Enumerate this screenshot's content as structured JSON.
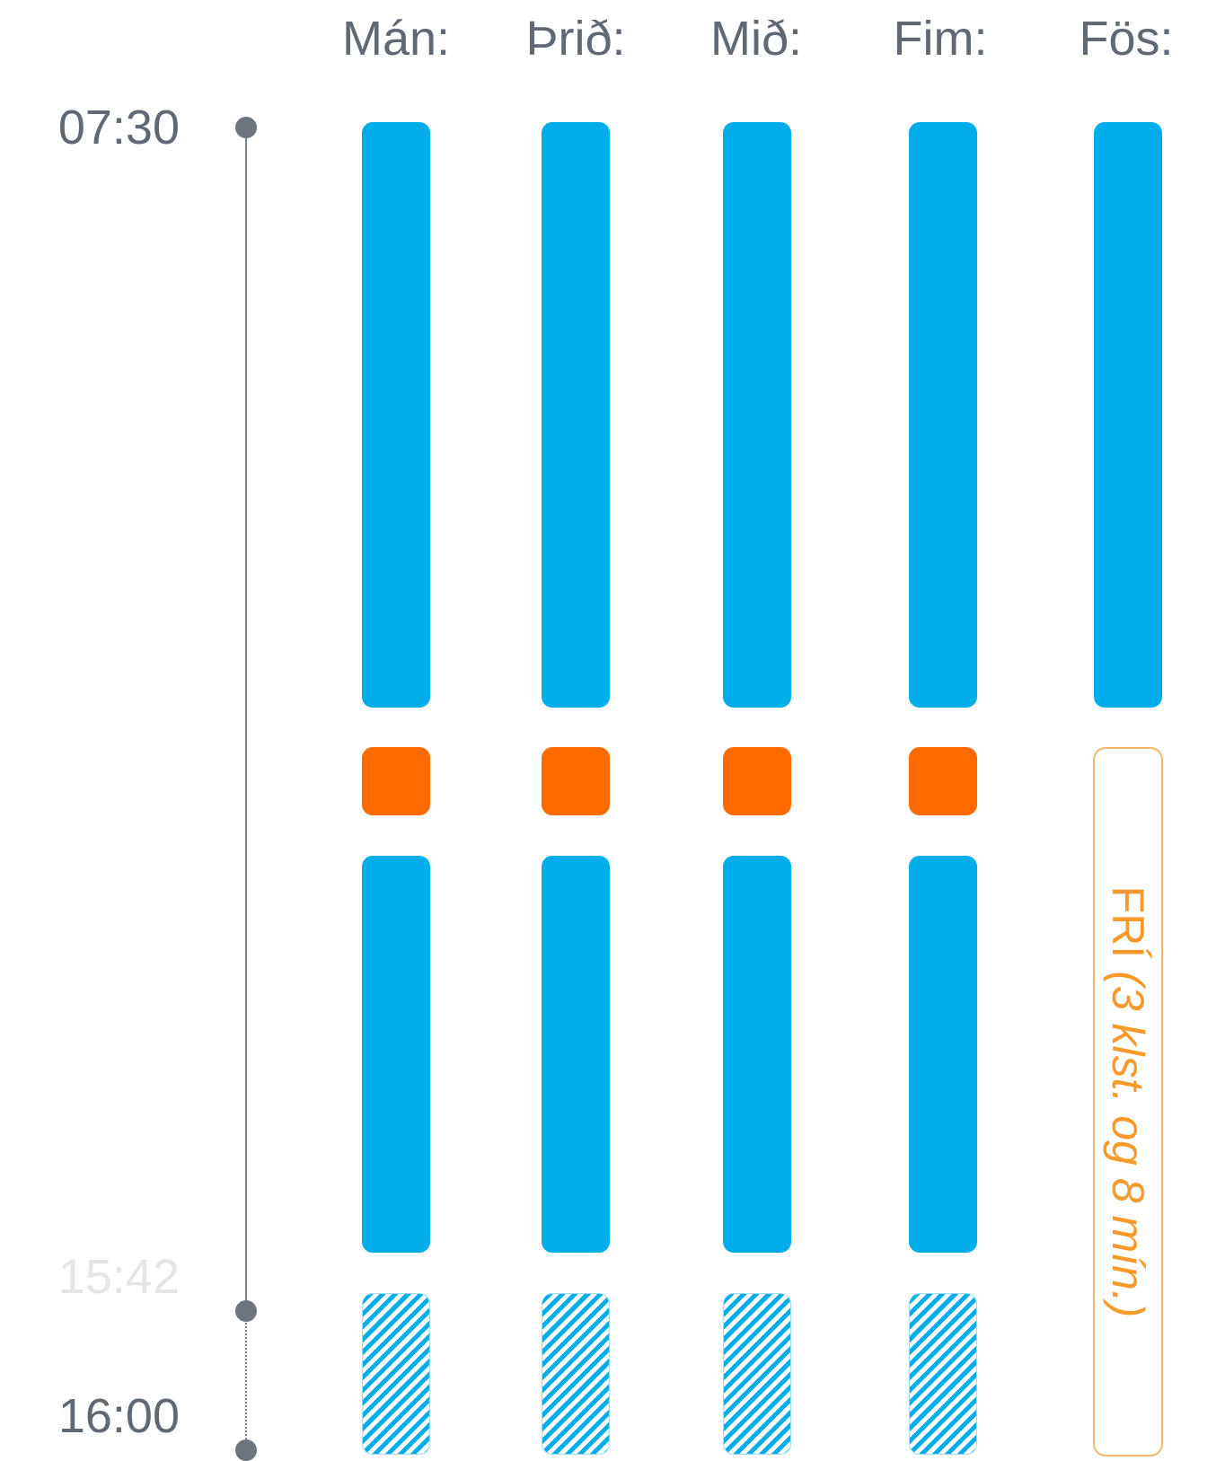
{
  "days": [
    "Mán:",
    "Þrið:",
    "Mið:",
    "Fim:",
    "Fös:"
  ],
  "times": {
    "start": "07:30",
    "marker": "15:42",
    "end": "16:00"
  },
  "friday_off": {
    "label": "FRÍ",
    "note": "(3 klst. og 8 mín.)"
  },
  "colors": {
    "work": "#00adeb",
    "break": "#ff6a00",
    "off_text": "#f89a2b",
    "axis": "#6c747d"
  }
}
